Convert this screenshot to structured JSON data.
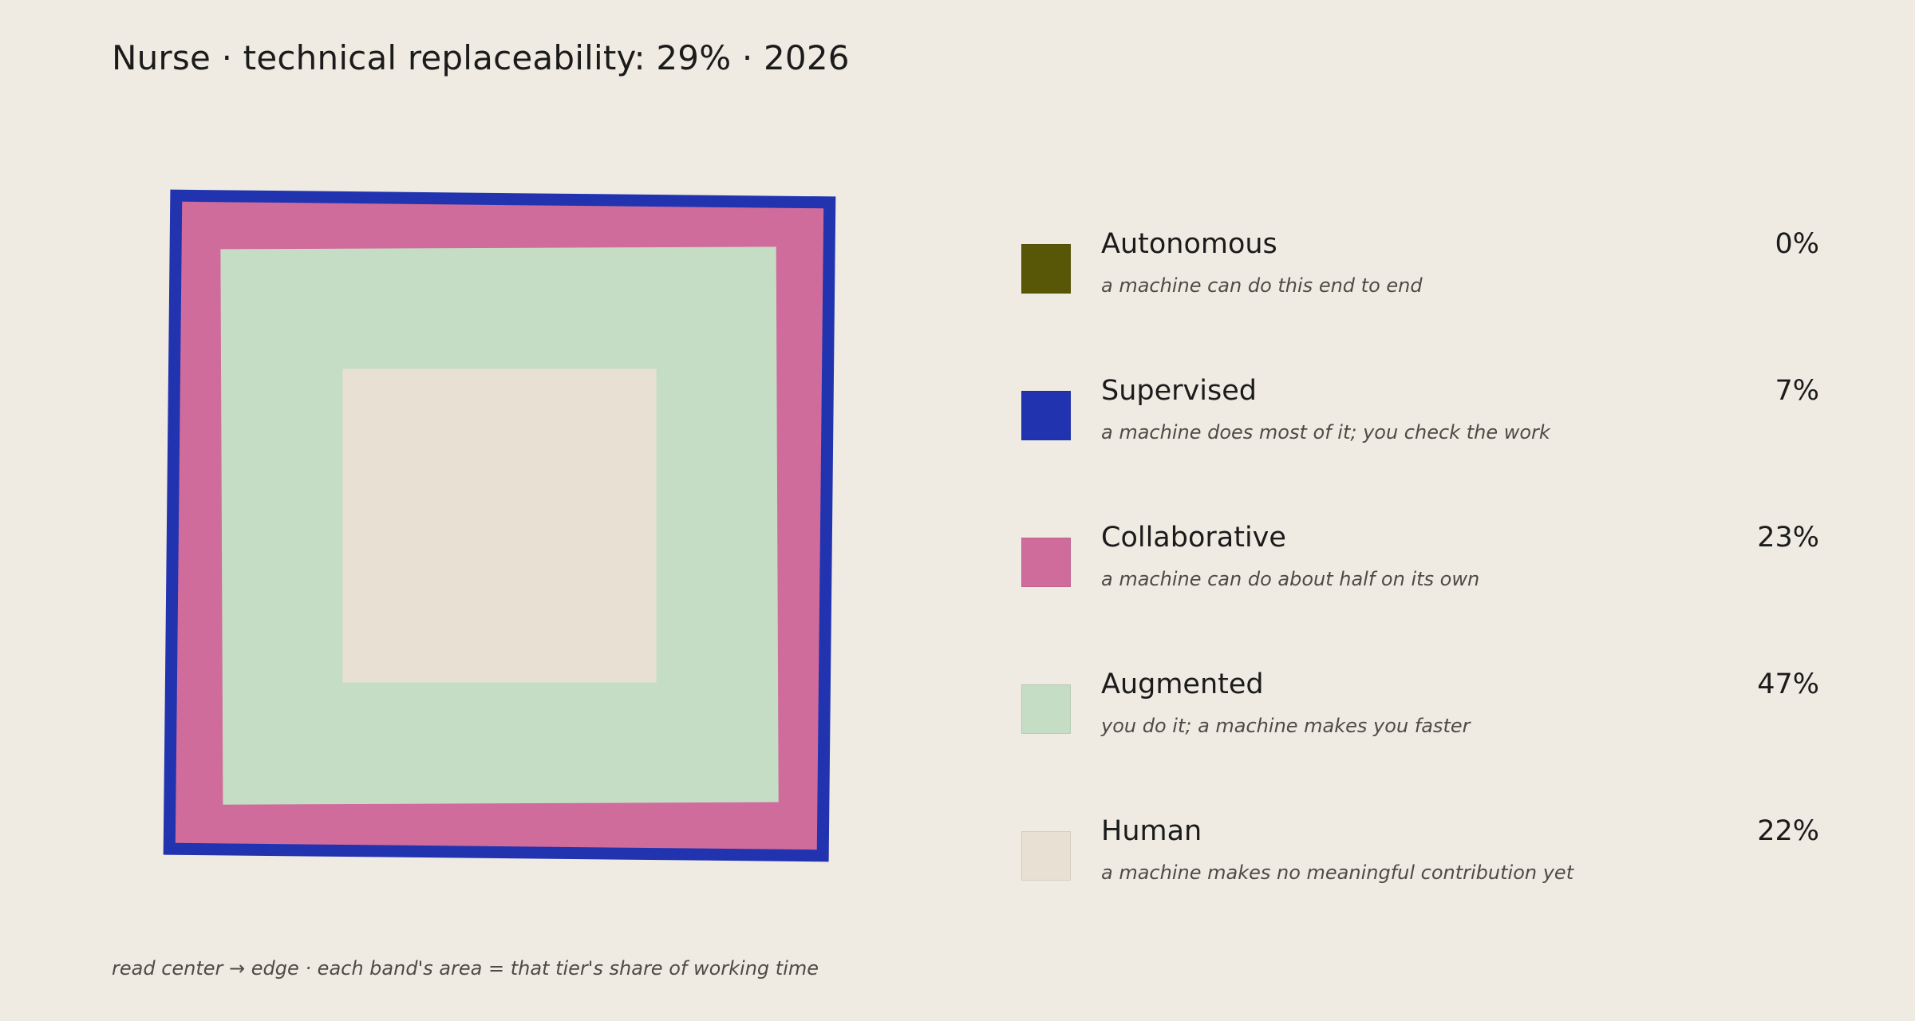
{
  "title": "Nurse · technical replaceability: 29% · 2026",
  "footnote": "read center → edge · each band's area = that tier's share of working time",
  "chart_data": {
    "type": "nested-squares",
    "title": "Nurse · technical replaceability: 29% · 2026",
    "order": "center-to-edge",
    "tiers": [
      {
        "name": "Autonomous",
        "description": "a machine can do this end to end",
        "value": 0,
        "label": "0%",
        "color": "#575707"
      },
      {
        "name": "Supervised",
        "description": "a machine does most of it; you check the work",
        "value": 7,
        "label": "7%",
        "color": "#2233b0"
      },
      {
        "name": "Collaborative",
        "description": "a machine can do about half on its own",
        "value": 23,
        "label": "23%",
        "color": "#cf6c9b"
      },
      {
        "name": "Augmented",
        "description": "you do it; a machine makes you faster",
        "value": 47,
        "label": "47%",
        "color": "#c6ddc5"
      },
      {
        "name": "Human",
        "description": "a machine makes no meaningful contribution yet",
        "value": 22,
        "label": "22%",
        "color": "#e8e1d3"
      }
    ]
  }
}
